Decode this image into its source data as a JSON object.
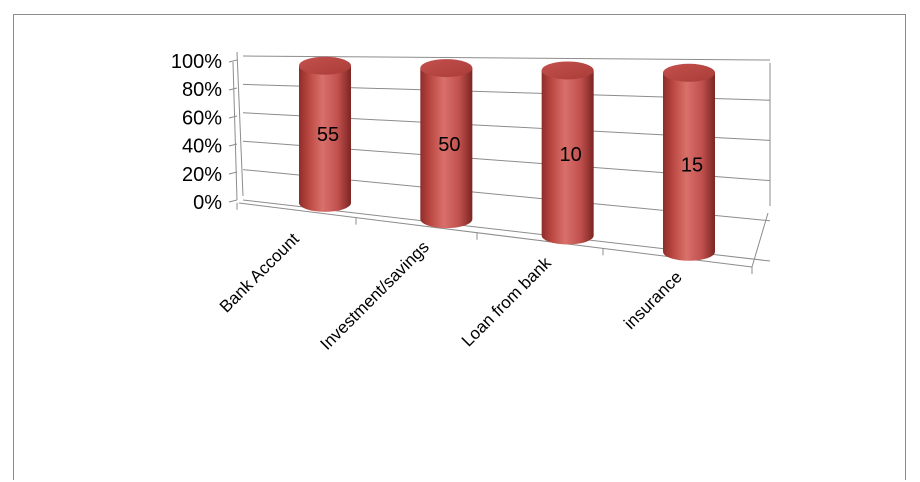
{
  "chart_data": {
    "type": "bar",
    "style": "3d-cylinder",
    "title": "",
    "xlabel": "",
    "ylabel": "",
    "categories": [
      "Bank Account",
      "Investment/savings",
      "Loan from bank",
      "insurance"
    ],
    "values": [
      55,
      50,
      10,
      15
    ],
    "data_labels": [
      "55",
      "50",
      "10",
      "15"
    ],
    "y_ticks": [
      "0%",
      "20%",
      "40%",
      "60%",
      "80%",
      "100%"
    ],
    "ylim": [
      0,
      100
    ],
    "grid": true,
    "legend": "none",
    "bar_color": "#c0504d"
  }
}
